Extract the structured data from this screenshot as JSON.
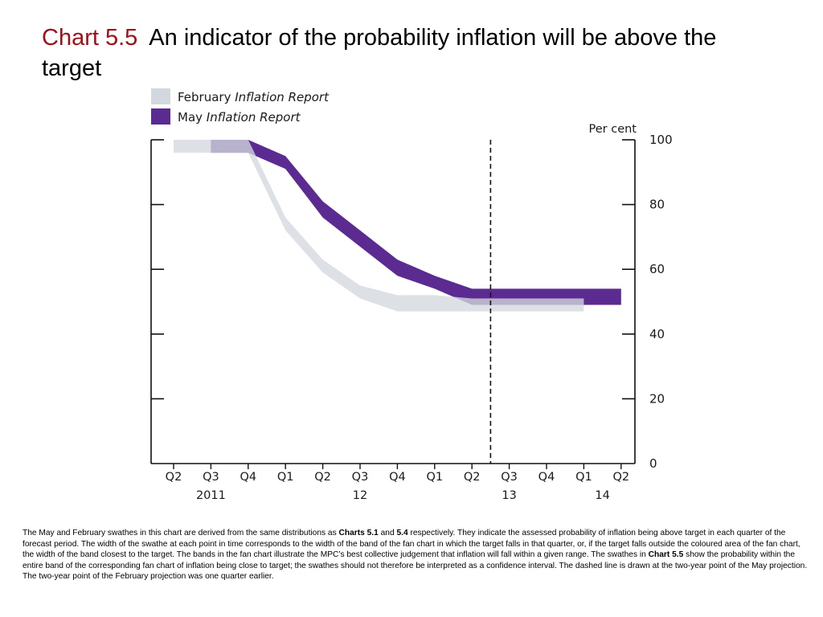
{
  "title": {
    "chart_number": "Chart 5.5",
    "text": "An indicator of the probability inflation will be above the target"
  },
  "colors": {
    "title_number": "#a01016",
    "february": "#d3d8de",
    "may": "#5b2b91",
    "overlap": "#9693c0"
  },
  "chart_data": {
    "type": "area",
    "y_unit_label": "Per cent",
    "ylim": [
      0,
      100
    ],
    "y_ticks": [
      "100",
      "80",
      "60",
      "40",
      "20",
      "0"
    ],
    "y_tick_values": [
      100,
      80,
      60,
      40,
      20,
      0
    ],
    "categories": [
      "Q2",
      "Q3",
      "Q4",
      "Q1",
      "Q2",
      "Q3",
      "Q4",
      "Q1",
      "Q2",
      "Q3",
      "Q4",
      "Q1",
      "Q2"
    ],
    "years": [
      {
        "label": "2011",
        "index": 1
      },
      {
        "label": "12",
        "index": 5
      },
      {
        "label": "13",
        "index": 9
      },
      {
        "label": "14",
        "index": 11.5
      }
    ],
    "legend": {
      "position": "top-left",
      "entries": [
        {
          "prefix": "February ",
          "italic": "Inflation Report",
          "series": "february"
        },
        {
          "prefix": "May ",
          "italic": "Inflation Report",
          "series": "may"
        }
      ]
    },
    "dashed_line_index": 8.5,
    "series": [
      {
        "name": "February Inflation Report",
        "key": "february",
        "x": [
          0,
          0.5,
          1,
          2,
          3,
          4,
          5,
          6,
          7,
          8,
          9,
          10,
          11
        ],
        "upper": [
          100,
          100,
          100,
          100,
          76,
          63,
          55,
          52,
          52,
          51,
          51,
          51,
          51
        ],
        "lower": [
          96,
          96,
          96,
          96,
          72,
          59,
          51,
          47,
          47,
          47,
          47,
          47,
          47
        ]
      },
      {
        "name": "May Inflation Report",
        "key": "may",
        "x": [
          1,
          2,
          3,
          4,
          5,
          6,
          7,
          8,
          9,
          10,
          11,
          12
        ],
        "upper": [
          100,
          100,
          95,
          81,
          72,
          63,
          58,
          54,
          54,
          54,
          54,
          54
        ],
        "lower": [
          96,
          96,
          91,
          76,
          67,
          58,
          54,
          49,
          49,
          49,
          49,
          49
        ]
      }
    ]
  },
  "note": {
    "p1": "The May and February swathes in this chart are derived from the same distributions as ",
    "b1": "Charts 5.1",
    "p2": " and ",
    "b2": "5.4",
    "p3": " respectively.  They indicate the assessed probability of inflation being above target in each quarter of the forecast period.  The width of the swathe at each point in time corresponds to the width of the band of the fan chart in which the target falls in that quarter, or, if the target falls outside the coloured area of the fan chart, the width of the band closest to the target.  The bands in the fan chart illustrate the MPC’s best collective judgement that inflation will fall within a given range.  The swathes in ",
    "b3": "Chart 5.5",
    "p4": " show the probability within the entire band of the corresponding fan chart of inflation being close to target;  the swathes should not therefore be interpreted as a confidence interval.  The dashed line is drawn at the two-year point of the May projection.  The two-year point of the February projection was one quarter earlier."
  }
}
